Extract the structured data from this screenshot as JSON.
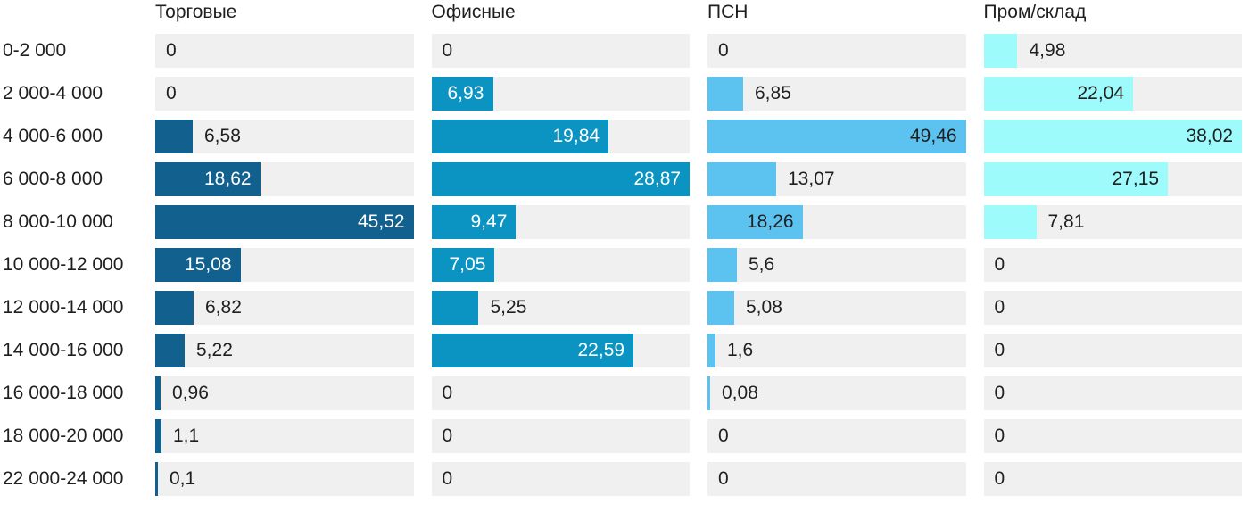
{
  "chart_data": {
    "type": "bar",
    "orientation": "horizontal",
    "layout": "small multiples: one panel per series (column titles act as legend), bar lengths normalized to each panel's own maximum",
    "grid": false,
    "track_color": "#f0f0f0",
    "text_color": "#1f1f1f",
    "categories": [
      "0-2 000",
      "2 000-4 000",
      "4 000-6 000",
      "6 000-8 000",
      "8 000-10 000",
      "10 000-12 000",
      "12 000-14 000",
      "14 000-16 000",
      "16 000-18 000",
      "18 000-20 000",
      "22 000-24 000"
    ],
    "series": [
      {
        "name": "Торговые",
        "color": "#12608d",
        "inside_label_color": "#ffffff",
        "values": [
          0,
          0,
          6.58,
          18.62,
          45.52,
          15.08,
          6.82,
          5.22,
          0.96,
          1.1,
          0.1
        ],
        "labels": [
          "0",
          "0",
          "6,58",
          "18,62",
          "45,52",
          "15,08",
          "6,82",
          "5,22",
          "0,96",
          "1,1",
          "0,1"
        ]
      },
      {
        "name": "Офисные",
        "color": "#0b93c1",
        "inside_label_color": "#ffffff",
        "values": [
          0,
          6.93,
          19.84,
          28.87,
          9.47,
          7.05,
          5.25,
          22.59,
          0,
          0,
          0
        ],
        "labels": [
          "0",
          "6,93",
          "19,84",
          "28,87",
          "9,47",
          "7,05",
          "5,25",
          "22,59",
          "0",
          "0",
          "0"
        ]
      },
      {
        "name": "ПСН",
        "color": "#5cc3f0",
        "inside_label_color": "#1f1f1f",
        "values": [
          0,
          6.85,
          49.46,
          13.07,
          18.26,
          5.6,
          5.08,
          1.6,
          0.08,
          0,
          0
        ],
        "labels": [
          "0",
          "6,85",
          "49,46",
          "13,07",
          "18,26",
          "5,6",
          "5,08",
          "1,6",
          "0,08",
          "0",
          "0"
        ]
      },
      {
        "name": "Пром/склад",
        "color": "#9dfbfc",
        "inside_label_color": "#1f1f1f",
        "values": [
          4.98,
          22.04,
          38.02,
          27.15,
          7.81,
          0,
          0,
          0,
          0,
          0,
          0
        ],
        "labels": [
          "4,98",
          "22,04",
          "38,02",
          "27,15",
          "7,81",
          "0",
          "0",
          "0",
          "0",
          "0",
          "0"
        ]
      }
    ]
  }
}
